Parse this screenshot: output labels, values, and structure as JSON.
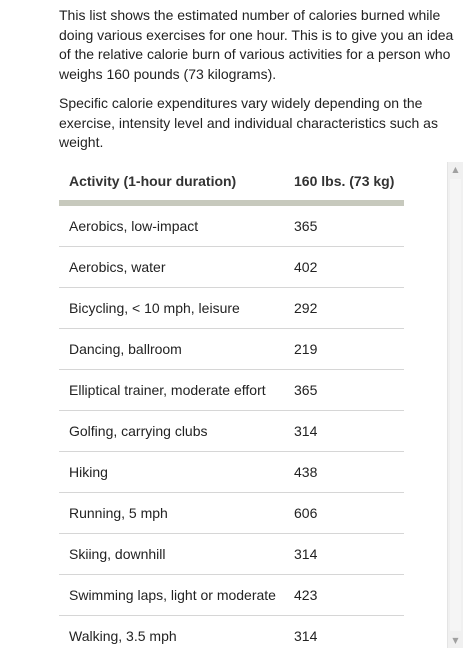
{
  "intro": {
    "paragraph1": "This list shows the estimated number of calories burned while doing various exercises for one hour. This is to give you an idea of the relative calorie burn of various activities for a person who weighs 160 pounds (73 kilograms).",
    "paragraph2": "Specific calorie expenditures vary widely depending on the exercise, intensity level and individual characteristics such as weight."
  },
  "table": {
    "headers": {
      "activity": "Activity (1-hour duration)",
      "calories": "160 lbs. (73 kg)"
    },
    "rows": [
      {
        "activity": "Aerobics, low-impact",
        "calories": "365"
      },
      {
        "activity": "Aerobics, water",
        "calories": "402"
      },
      {
        "activity": "Bicycling, < 10 mph, leisure",
        "calories": "292"
      },
      {
        "activity": "Dancing, ballroom",
        "calories": "219"
      },
      {
        "activity": "Elliptical trainer, moderate effort",
        "calories": "365"
      },
      {
        "activity": "Golfing, carrying clubs",
        "calories": "314"
      },
      {
        "activity": "Hiking",
        "calories": "438"
      },
      {
        "activity": "Running, 5 mph",
        "calories": "606"
      },
      {
        "activity": "Skiing, downhill",
        "calories": "314"
      },
      {
        "activity": "Swimming laps, light or moderate",
        "calories": "423"
      },
      {
        "activity": "Walking, 3.5 mph",
        "calories": "314"
      }
    ]
  },
  "scrollbar": {
    "up_icon": "▲",
    "down_icon": "▼"
  },
  "colors": {
    "header_rule": "#c7c9bd",
    "row_border": "#d6d6d6",
    "text": "#222222"
  }
}
